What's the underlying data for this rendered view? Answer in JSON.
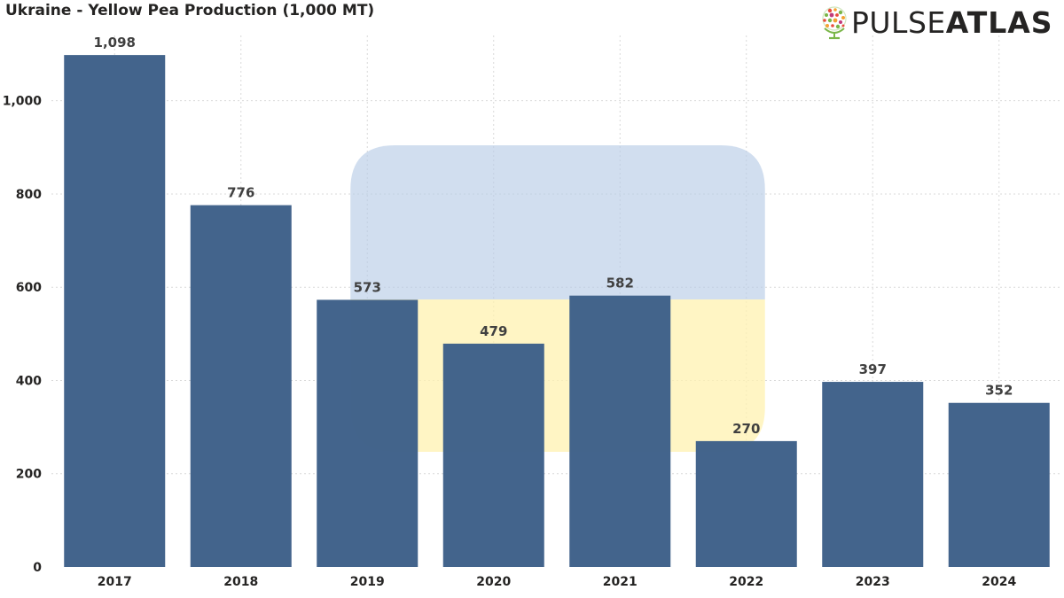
{
  "header": {
    "title": "Ukraine - Yellow Pea Production (1,000 MT)"
  },
  "logo": {
    "word1": "PULSE",
    "word2": "ATLAS",
    "icon": "globe-dots-icon"
  },
  "colors": {
    "bar": "#3f618a",
    "flag_blue": "#b8cce6",
    "flag_yellow": "#fff1b0",
    "grid": "#d9d9d9",
    "text": "#252423",
    "label": "#404040"
  },
  "chart_data": {
    "type": "bar",
    "title": "Ukraine - Yellow Pea Production (1,000 MT)",
    "xlabel": "",
    "ylabel": "",
    "categories": [
      "2017",
      "2018",
      "2019",
      "2020",
      "2021",
      "2022",
      "2023",
      "2024"
    ],
    "values": [
      1098,
      776,
      573,
      479,
      582,
      270,
      397,
      352
    ],
    "value_labels": [
      "1,098",
      "776",
      "573",
      "479",
      "582",
      "270",
      "397",
      "352"
    ],
    "ylim": [
      0,
      1140
    ],
    "yticks": [
      0,
      200,
      400,
      600,
      800,
      1000
    ],
    "ytick_labels": [
      "0",
      "200",
      "400",
      "600",
      "800",
      "1,000"
    ],
    "grid": "dotted",
    "legend": "none",
    "background_shape": "Ukraine flag (blue over yellow), rounded, semi-transparent, behind 2019–2022"
  }
}
